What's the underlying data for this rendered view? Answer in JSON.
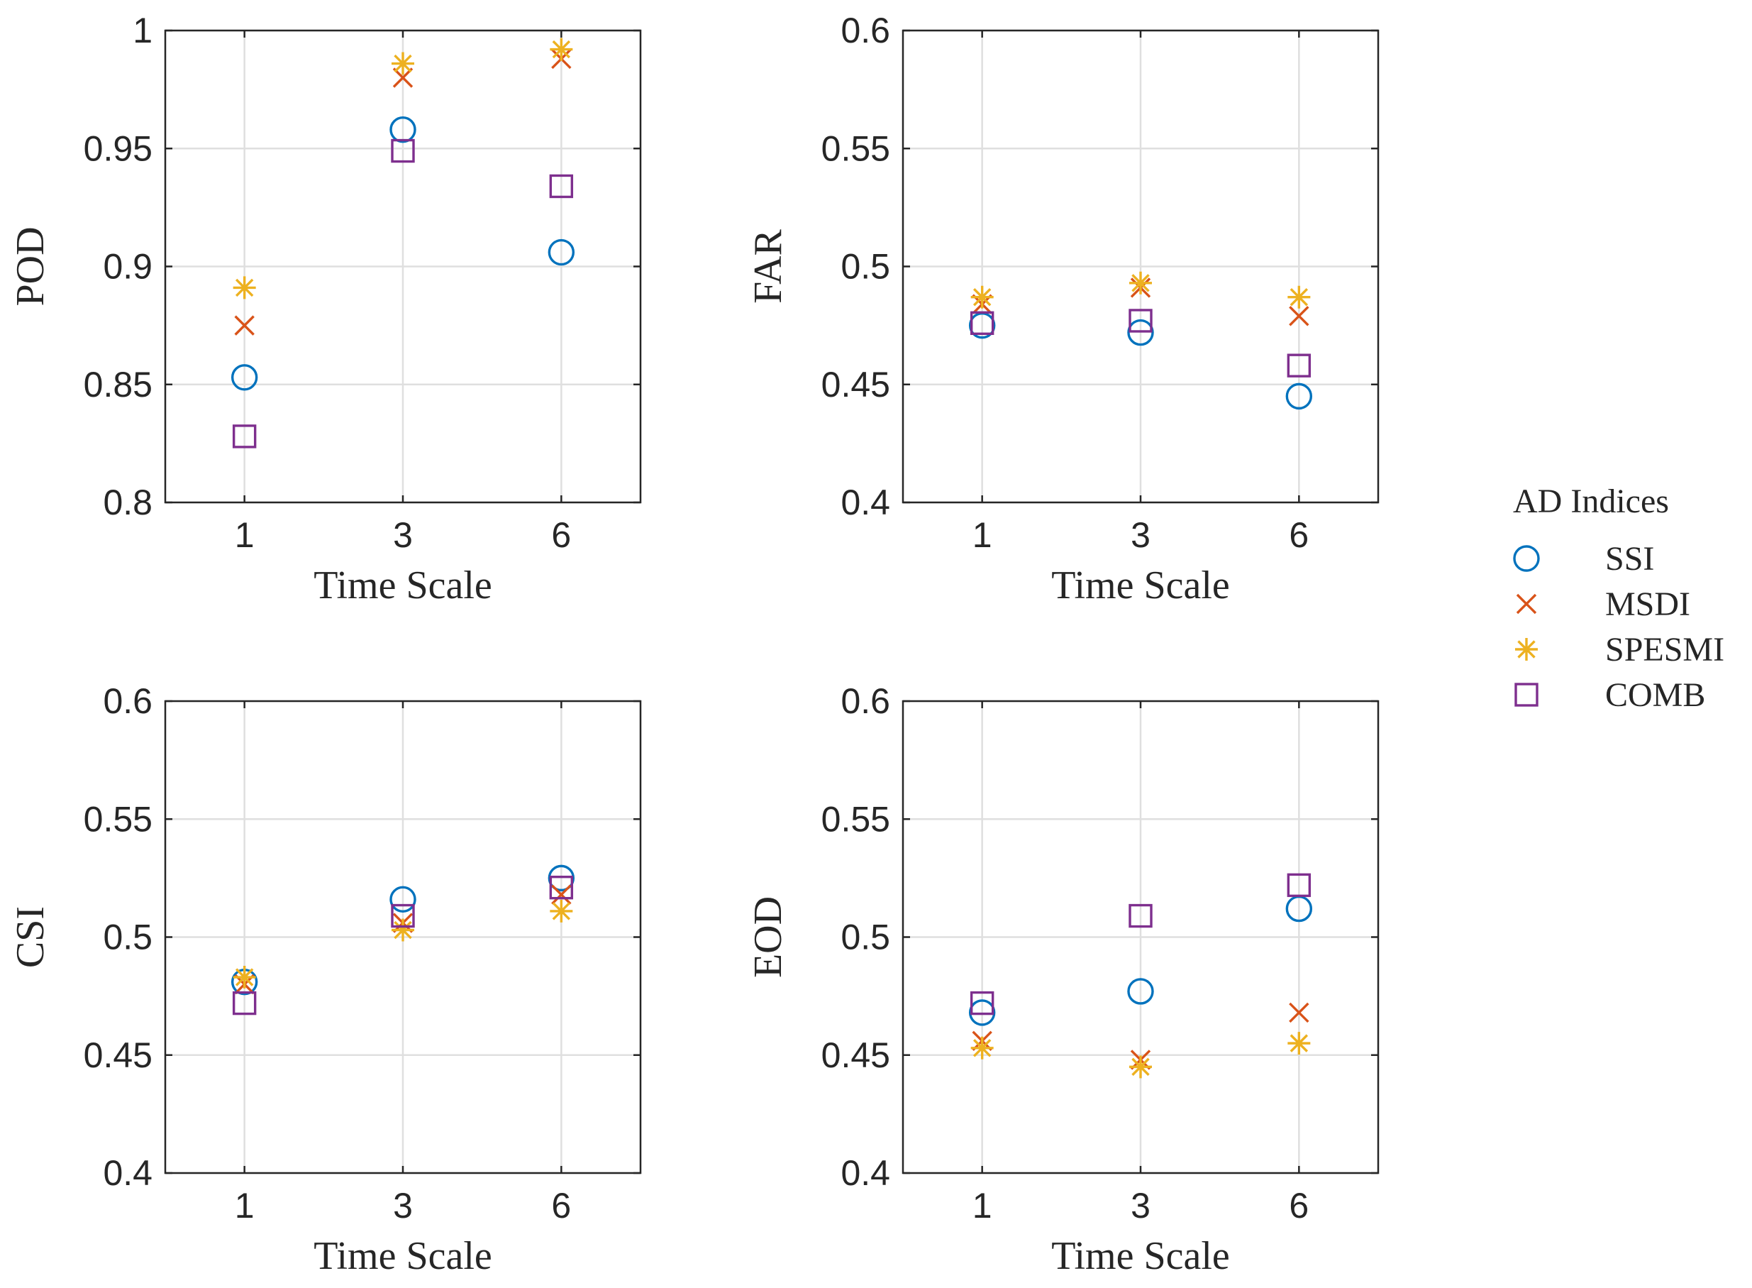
{
  "chart_data": [
    {
      "type": "scatter",
      "ylabel": "POD",
      "xlabel": "Time Scale",
      "categories": [
        "1",
        "3",
        "6"
      ],
      "ylim": [
        0.8,
        1
      ],
      "yticks": [
        "0.8",
        "0.85",
        "0.9",
        "0.95",
        "1"
      ],
      "series": [
        {
          "name": "SSI",
          "values": [
            0.853,
            0.958,
            0.906
          ]
        },
        {
          "name": "MSDI",
          "values": [
            0.875,
            0.98,
            0.988
          ]
        },
        {
          "name": "SPESMI",
          "values": [
            0.891,
            0.986,
            0.992
          ]
        },
        {
          "name": "COMB",
          "values": [
            0.828,
            0.949,
            0.934
          ]
        }
      ]
    },
    {
      "type": "scatter",
      "ylabel": "FAR",
      "xlabel": "Time Scale",
      "categories": [
        "1",
        "3",
        "6"
      ],
      "ylim": [
        0.4,
        0.6
      ],
      "yticks": [
        "0.4",
        "0.45",
        "0.5",
        "0.55",
        "0.6"
      ],
      "series": [
        {
          "name": "SSI",
          "values": [
            0.475,
            0.472,
            0.445
          ]
        },
        {
          "name": "MSDI",
          "values": [
            0.484,
            0.491,
            0.479
          ]
        },
        {
          "name": "SPESMI",
          "values": [
            0.487,
            0.493,
            0.487
          ]
        },
        {
          "name": "COMB",
          "values": [
            0.476,
            0.477,
            0.458
          ]
        }
      ]
    },
    {
      "type": "scatter",
      "ylabel": "CSI",
      "xlabel": "Time Scale",
      "categories": [
        "1",
        "3",
        "6"
      ],
      "ylim": [
        0.4,
        0.6
      ],
      "yticks": [
        "0.4",
        "0.45",
        "0.5",
        "0.55",
        "0.6"
      ],
      "series": [
        {
          "name": "SSI",
          "values": [
            0.481,
            0.516,
            0.525
          ]
        },
        {
          "name": "MSDI",
          "values": [
            0.48,
            0.506,
            0.518
          ]
        },
        {
          "name": "SPESMI",
          "values": [
            0.483,
            0.503,
            0.511
          ]
        },
        {
          "name": "COMB",
          "values": [
            0.472,
            0.509,
            0.521
          ]
        }
      ]
    },
    {
      "type": "scatter",
      "ylabel": "EOD",
      "xlabel": "Time Scale",
      "categories": [
        "1",
        "3",
        "6"
      ],
      "ylim": [
        0.4,
        0.6
      ],
      "yticks": [
        "0.4",
        "0.45",
        "0.5",
        "0.55",
        "0.6"
      ],
      "series": [
        {
          "name": "SSI",
          "values": [
            0.468,
            0.477,
            0.512
          ]
        },
        {
          "name": "MSDI",
          "values": [
            0.456,
            0.448,
            0.468
          ]
        },
        {
          "name": "SPESMI",
          "values": [
            0.453,
            0.445,
            0.455
          ]
        },
        {
          "name": "COMB",
          "values": [
            0.472,
            0.509,
            0.522
          ]
        }
      ]
    }
  ],
  "legend": {
    "title": "AD Indices",
    "items": [
      {
        "name": "SSI",
        "marker": "circle",
        "color": "#0072BD"
      },
      {
        "name": "MSDI",
        "marker": "x",
        "color": "#D95319"
      },
      {
        "name": "SPESMI",
        "marker": "asterisk",
        "color": "#EDB120"
      },
      {
        "name": "COMB",
        "marker": "square",
        "color": "#7E2F8E"
      }
    ]
  }
}
